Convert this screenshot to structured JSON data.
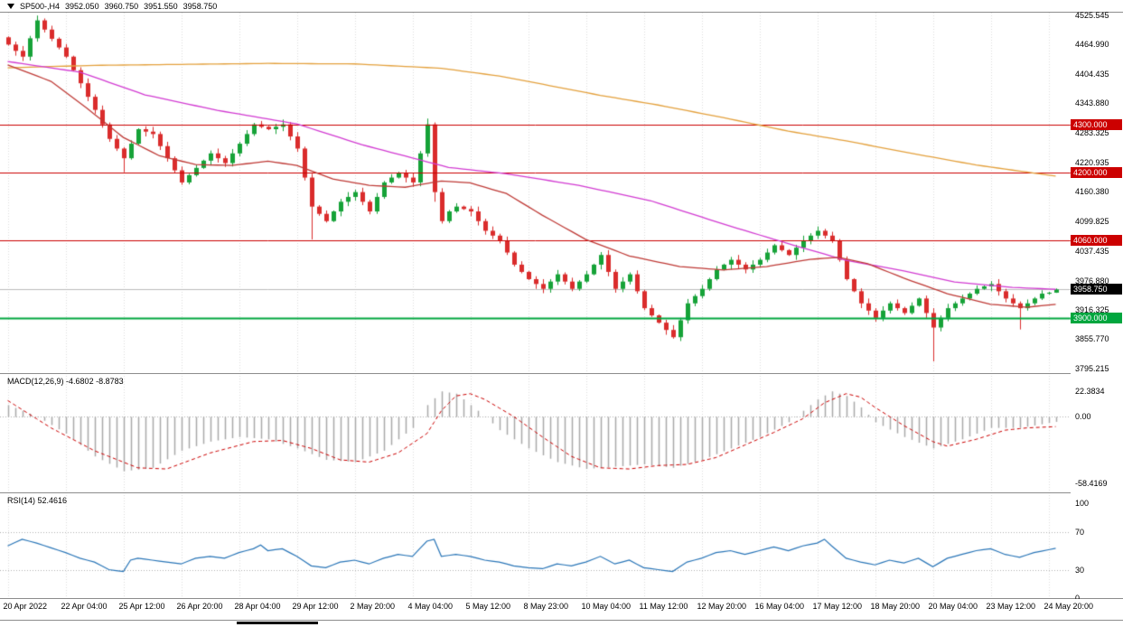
{
  "header": {
    "symbol": "SP500-,H4",
    "open": "3952.050",
    "high": "3960.750",
    "low": "3951.550",
    "close": "3958.750"
  },
  "chart_data": {
    "type": "candlestick",
    "title": "SP500- H4 chart with MACD and RSI",
    "colors": {
      "bull": "#16a238",
      "bear": "#da2c2c",
      "level_red": "#cc0000",
      "level_green": "#00a63e",
      "ma_slow": "#e4a13d",
      "ma_medium": "#d23bd2",
      "ma_fast": "#bf3a36",
      "current_line": "#bcbcbc",
      "current_tag_bg": "#000000",
      "macd_hist": "#a9a9a9",
      "macd_signal": "#cc0000",
      "rsi_line": "#2a76b8",
      "grid": "#dcdcdc",
      "guide": "#b0b0b0"
    },
    "price_axis_labels": [
      "4525.545",
      "4464.990",
      "4404.435",
      "4343.880",
      "4283.325",
      "4220.935",
      "4160.380",
      "4099.825",
      "4037.435",
      "3976.880",
      "3916.325",
      "3855.770",
      "3795.215"
    ],
    "x_axis": {
      "bars_per_label": 8,
      "labels": [
        "20 Apr 2022",
        "22 Apr 04:00",
        "25 Apr 12:00",
        "26 Apr 20:00",
        "28 Apr 04:00",
        "29 Apr 12:00",
        "2 May 20:00",
        "4 May 04:00",
        "5 May 12:00",
        "8 May 23:00",
        "10 May 04:00",
        "11 May 12:00",
        "12 May 20:00",
        "16 May 04:00",
        "17 May 12:00",
        "18 May 20:00",
        "20 May 04:00",
        "23 May 12:00",
        "24 May 20:00"
      ]
    },
    "levels": [
      {
        "price": 4300.0,
        "label": "4300.000",
        "color": "#cc0000",
        "width": 1
      },
      {
        "price": 4200.0,
        "label": "4200.000",
        "color": "#cc0000",
        "width": 1
      },
      {
        "price": 4060.0,
        "label": "4060.000",
        "color": "#cc0000",
        "width": 1
      },
      {
        "price": 3900.0,
        "label": "3900.000",
        "color": "#00a63e",
        "width": 2
      }
    ],
    "current_price": {
      "price": 3958.75,
      "label": "3958.750"
    },
    "candles": {
      "first_open": 4480,
      "closes": [
        4465,
        4452,
        4440,
        4478,
        4515,
        4496,
        4477,
        4459,
        4440,
        4412,
        4385,
        4357,
        4330,
        4300,
        4270,
        4250,
        4230,
        4260,
        4290,
        4285,
        4280,
        4255,
        4230,
        4205,
        4180,
        4195,
        4210,
        4225,
        4240,
        4230,
        4220,
        4240,
        4260,
        4280,
        4300,
        4295,
        4290,
        4295,
        4300,
        4275,
        4250,
        4190,
        4130,
        4115,
        4100,
        4120,
        4140,
        4150,
        4160,
        4140,
        4120,
        4150,
        4180,
        4190,
        4200,
        4190,
        4180,
        4240,
        4300,
        4160,
        4100,
        4120,
        4130,
        4125,
        4120,
        4100,
        4080,
        4070,
        4060,
        4035,
        4010,
        3995,
        3980,
        3970,
        3960,
        3975,
        3990,
        3975,
        3960,
        3975,
        3990,
        4010,
        4030,
        3995,
        3960,
        3975,
        3990,
        3955,
        3920,
        3905,
        3890,
        3875,
        3860,
        3895,
        3930,
        3945,
        3960,
        3980,
        4000,
        4010,
        4020,
        4010,
        4000,
        4010,
        4020,
        4035,
        4050,
        4040,
        4030,
        4045,
        4060,
        4070,
        4080,
        4070,
        4060,
        4020,
        3980,
        3955,
        3930,
        3915,
        3900,
        3915,
        3930,
        3920,
        3910,
        3925,
        3940,
        3910,
        3880,
        3900,
        3920,
        3930,
        3940,
        3950,
        3960,
        3965,
        3970,
        3955,
        3940,
        3930,
        3920,
        3930,
        3940,
        3950,
        3952,
        3958.75
      ],
      "overrides": {
        "4": {
          "high": 4525
        },
        "16": {
          "low": 4201
        },
        "42": {
          "low": 4062
        },
        "58": {
          "high": 4312
        },
        "59": {
          "low": 4140
        },
        "92": {
          "low": 3857
        },
        "128": {
          "low": 3810
        },
        "140": {
          "low": 3876
        },
        "145": {
          "open": 3952.05,
          "high": 3960.75,
          "low": 3951.55,
          "close": 3958.75
        }
      }
    },
    "ma_lines": [
      {
        "name": "ma-slow-orange",
        "color": "#e4a13d",
        "anchors": [
          [
            0,
            4417
          ],
          [
            12,
            4422
          ],
          [
            24,
            4424
          ],
          [
            36,
            4426
          ],
          [
            48,
            4425
          ],
          [
            60,
            4416
          ],
          [
            68,
            4400
          ],
          [
            74,
            4383
          ],
          [
            82,
            4360
          ],
          [
            90,
            4340
          ],
          [
            99,
            4314
          ],
          [
            108,
            4286
          ],
          [
            116,
            4266
          ],
          [
            124,
            4243
          ],
          [
            134,
            4216
          ],
          [
            145,
            4193
          ]
        ]
      },
      {
        "name": "ma-medium-magenta",
        "color": "#d23bd2",
        "anchors": [
          [
            0,
            4430
          ],
          [
            10,
            4408
          ],
          [
            19,
            4361
          ],
          [
            29,
            4329
          ],
          [
            40,
            4301
          ],
          [
            49,
            4258
          ],
          [
            61,
            4211
          ],
          [
            69,
            4198
          ],
          [
            79,
            4174
          ],
          [
            89,
            4142
          ],
          [
            99,
            4094
          ],
          [
            109,
            4049
          ],
          [
            116,
            4019
          ],
          [
            124,
            3997
          ],
          [
            131,
            3974
          ],
          [
            139,
            3963
          ],
          [
            145,
            3959
          ]
        ]
      },
      {
        "name": "ma-fast-red",
        "color": "#bf3a36",
        "anchors": [
          [
            0,
            4423
          ],
          [
            6,
            4389
          ],
          [
            11,
            4333
          ],
          [
            16,
            4273
          ],
          [
            21,
            4235
          ],
          [
            26,
            4217
          ],
          [
            31,
            4215
          ],
          [
            36,
            4224
          ],
          [
            40,
            4215
          ],
          [
            45,
            4187
          ],
          [
            50,
            4174
          ],
          [
            55,
            4170
          ],
          [
            60,
            4183
          ],
          [
            64,
            4179
          ],
          [
            69,
            4157
          ],
          [
            74,
            4112
          ],
          [
            80,
            4062
          ],
          [
            86,
            4028
          ],
          [
            93,
            4006
          ],
          [
            99,
            3999
          ],
          [
            105,
            4006
          ],
          [
            111,
            4021
          ],
          [
            115,
            4025
          ],
          [
            119,
            4012
          ],
          [
            124,
            3982
          ],
          [
            130,
            3950
          ],
          [
            136,
            3928
          ],
          [
            141,
            3922
          ],
          [
            145,
            3928
          ]
        ]
      }
    ],
    "macd": {
      "title": "MACD(12,26,9)",
      "values_text": "-4.6802 -8.8783",
      "axis": [
        {
          "v": 22.3834,
          "label": "22.3834"
        },
        {
          "v": 0,
          "label": "0.00"
        },
        {
          "v": -58.4169,
          "label": "-58.4169"
        }
      ],
      "histogram_anchors": [
        [
          0,
          10
        ],
        [
          4,
          0
        ],
        [
          8,
          -15
        ],
        [
          12,
          -35
        ],
        [
          16,
          -48
        ],
        [
          20,
          -45
        ],
        [
          24,
          -30
        ],
        [
          28,
          -22
        ],
        [
          32,
          -18
        ],
        [
          36,
          -20
        ],
        [
          40,
          -28
        ],
        [
          44,
          -38
        ],
        [
          48,
          -40
        ],
        [
          52,
          -30
        ],
        [
          56,
          -10
        ],
        [
          58,
          10
        ],
        [
          60,
          22
        ],
        [
          62,
          20
        ],
        [
          64,
          10
        ],
        [
          66,
          0
        ],
        [
          68,
          -12
        ],
        [
          72,
          -28
        ],
        [
          76,
          -40
        ],
        [
          80,
          -46
        ],
        [
          84,
          -44
        ],
        [
          88,
          -42
        ],
        [
          92,
          -45
        ],
        [
          96,
          -38
        ],
        [
          100,
          -28
        ],
        [
          104,
          -18
        ],
        [
          108,
          -5
        ],
        [
          110,
          5
        ],
        [
          112,
          15
        ],
        [
          114,
          22
        ],
        [
          116,
          18
        ],
        [
          118,
          8
        ],
        [
          120,
          -5
        ],
        [
          124,
          -18
        ],
        [
          128,
          -28
        ],
        [
          132,
          -20
        ],
        [
          136,
          -10
        ],
        [
          140,
          -10
        ],
        [
          145,
          -4.68
        ]
      ],
      "signal_anchors": [
        [
          0,
          14
        ],
        [
          6,
          -10
        ],
        [
          12,
          -30
        ],
        [
          18,
          -45
        ],
        [
          22,
          -46
        ],
        [
          28,
          -32
        ],
        [
          34,
          -22
        ],
        [
          38,
          -21
        ],
        [
          42,
          -28
        ],
        [
          46,
          -38
        ],
        [
          50,
          -40
        ],
        [
          54,
          -32
        ],
        [
          58,
          -15
        ],
        [
          60,
          5
        ],
        [
          62,
          18
        ],
        [
          64,
          20
        ],
        [
          66,
          15
        ],
        [
          70,
          0
        ],
        [
          74,
          -18
        ],
        [
          78,
          -35
        ],
        [
          82,
          -45
        ],
        [
          86,
          -46
        ],
        [
          90,
          -43
        ],
        [
          94,
          -42
        ],
        [
          98,
          -36
        ],
        [
          102,
          -25
        ],
        [
          106,
          -14
        ],
        [
          110,
          -2
        ],
        [
          113,
          12
        ],
        [
          116,
          20
        ],
        [
          118,
          17
        ],
        [
          120,
          8
        ],
        [
          124,
          -8
        ],
        [
          128,
          -22
        ],
        [
          130,
          -26
        ],
        [
          134,
          -20
        ],
        [
          138,
          -12
        ],
        [
          141,
          -10
        ],
        [
          145,
          -8.88
        ]
      ]
    },
    "rsi": {
      "title": "RSI(14)",
      "value_text": "52.4616",
      "axis": [
        {
          "v": 100,
          "label": "100"
        },
        {
          "v": 70,
          "label": "70"
        },
        {
          "v": 30,
          "label": "30"
        },
        {
          "v": 0,
          "label": "0"
        }
      ],
      "guides": [
        70,
        30
      ],
      "line_anchors": [
        [
          0,
          55
        ],
        [
          2,
          62
        ],
        [
          4,
          58
        ],
        [
          8,
          48
        ],
        [
          10,
          42
        ],
        [
          12,
          38
        ],
        [
          14,
          30
        ],
        [
          16,
          28
        ],
        [
          17,
          40
        ],
        [
          18,
          42
        ],
        [
          20,
          40
        ],
        [
          24,
          36
        ],
        [
          26,
          42
        ],
        [
          28,
          44
        ],
        [
          30,
          42
        ],
        [
          32,
          48
        ],
        [
          34,
          52
        ],
        [
          35,
          56
        ],
        [
          36,
          50
        ],
        [
          38,
          52
        ],
        [
          40,
          44
        ],
        [
          42,
          34
        ],
        [
          44,
          32
        ],
        [
          46,
          38
        ],
        [
          48,
          40
        ],
        [
          50,
          36
        ],
        [
          52,
          42
        ],
        [
          54,
          46
        ],
        [
          56,
          44
        ],
        [
          58,
          60
        ],
        [
          59,
          62
        ],
        [
          60,
          44
        ],
        [
          62,
          46
        ],
        [
          64,
          44
        ],
        [
          66,
          40
        ],
        [
          68,
          38
        ],
        [
          70,
          34
        ],
        [
          72,
          32
        ],
        [
          74,
          31
        ],
        [
          76,
          36
        ],
        [
          78,
          34
        ],
        [
          80,
          38
        ],
        [
          82,
          44
        ],
        [
          84,
          36
        ],
        [
          86,
          40
        ],
        [
          88,
          32
        ],
        [
          90,
          30
        ],
        [
          92,
          28
        ],
        [
          94,
          38
        ],
        [
          96,
          42
        ],
        [
          98,
          48
        ],
        [
          100,
          50
        ],
        [
          102,
          46
        ],
        [
          104,
          50
        ],
        [
          106,
          54
        ],
        [
          108,
          50
        ],
        [
          110,
          55
        ],
        [
          112,
          58
        ],
        [
          113,
          62
        ],
        [
          114,
          55
        ],
        [
          116,
          42
        ],
        [
          118,
          38
        ],
        [
          120,
          35
        ],
        [
          122,
          40
        ],
        [
          124,
          37
        ],
        [
          126,
          42
        ],
        [
          128,
          33
        ],
        [
          130,
          42
        ],
        [
          132,
          46
        ],
        [
          134,
          50
        ],
        [
          136,
          52
        ],
        [
          138,
          46
        ],
        [
          140,
          43
        ],
        [
          142,
          48
        ],
        [
          145,
          52.46
        ]
      ]
    }
  }
}
